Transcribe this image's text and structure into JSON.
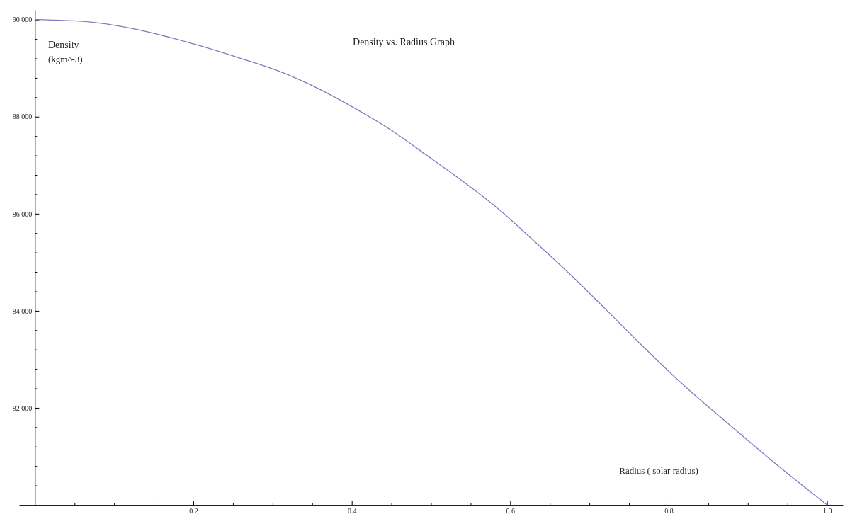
{
  "chart_data": {
    "type": "line",
    "title": "Density vs. Radius Graph",
    "xlabel": "Radius ( solar radius)",
    "ylabel": "Density (kgm^-3)",
    "xlim": [
      -0.02,
      1.02
    ],
    "ylim": [
      80000,
      90200
    ],
    "xticks": [
      {
        "value": 0.05,
        "label": null
      },
      {
        "value": 0.1,
        "label": null
      },
      {
        "value": 0.15,
        "label": null
      },
      {
        "value": 0.2,
        "label": "0.2"
      },
      {
        "value": 0.25,
        "label": null
      },
      {
        "value": 0.3,
        "label": null
      },
      {
        "value": 0.35,
        "label": null
      },
      {
        "value": 0.4,
        "label": "0.4"
      },
      {
        "value": 0.45,
        "label": null
      },
      {
        "value": 0.5,
        "label": null
      },
      {
        "value": 0.55,
        "label": null
      },
      {
        "value": 0.6,
        "label": "0.6"
      },
      {
        "value": 0.65,
        "label": null
      },
      {
        "value": 0.7,
        "label": null
      },
      {
        "value": 0.75,
        "label": null
      },
      {
        "value": 0.8,
        "label": "0.8"
      },
      {
        "value": 0.85,
        "label": null
      },
      {
        "value": 0.9,
        "label": null
      },
      {
        "value": 0.95,
        "label": null
      },
      {
        "value": 1.0,
        "label": "1.0"
      }
    ],
    "yticks": [
      {
        "value": 80400,
        "label": null
      },
      {
        "value": 80800,
        "label": null
      },
      {
        "value": 81200,
        "label": null
      },
      {
        "value": 81600,
        "label": null
      },
      {
        "value": 82000,
        "label": "82 000"
      },
      {
        "value": 82400,
        "label": null
      },
      {
        "value": 82800,
        "label": null
      },
      {
        "value": 83200,
        "label": null
      },
      {
        "value": 83600,
        "label": null
      },
      {
        "value": 84000,
        "label": "84 000"
      },
      {
        "value": 84400,
        "label": null
      },
      {
        "value": 84800,
        "label": null
      },
      {
        "value": 85200,
        "label": null
      },
      {
        "value": 85600,
        "label": null
      },
      {
        "value": 86000,
        "label": "86 000"
      },
      {
        "value": 86400,
        "label": null
      },
      {
        "value": 86800,
        "label": null
      },
      {
        "value": 87200,
        "label": null
      },
      {
        "value": 87600,
        "label": null
      },
      {
        "value": 88000,
        "label": "88 000"
      },
      {
        "value": 88400,
        "label": null
      },
      {
        "value": 88800,
        "label": null
      },
      {
        "value": 89200,
        "label": null
      },
      {
        "value": 89600,
        "label": null
      },
      {
        "value": 90000,
        "label": "90 000"
      }
    ],
    "x": [
      0,
      0.07,
      0.134,
      0.2,
      0.26,
      0.3125,
      0.36,
      0.403,
      0.45,
      0.494,
      0.54,
      0.585,
      0.63,
      0.675,
      0.72,
      0.766,
      0.82,
      0.879,
      0.94,
      1.0
    ],
    "series": [
      {
        "color": "#7b7bc0",
        "values": [
          90000,
          89950,
          89780,
          89500,
          89200,
          88910,
          88560,
          88180,
          87720,
          87210,
          86670,
          86100,
          85440,
          84760,
          84040,
          83290,
          82450,
          81620,
          80780,
          80000
        ]
      }
    ],
    "grid": false,
    "marker": "none",
    "line_style": "solid"
  }
}
